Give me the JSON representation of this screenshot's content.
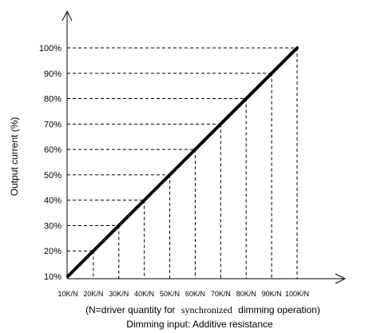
{
  "chart_data": {
    "type": "line",
    "x_categories": [
      "10K/N",
      "20K/N",
      "30K/N",
      "40K/N",
      "50K/N",
      "60K/N",
      "70K/N",
      "80K/N",
      "90K/N",
      "100K/N"
    ],
    "x_values": [
      10,
      20,
      30,
      40,
      50,
      60,
      70,
      80,
      90,
      100
    ],
    "y_ticks": [
      "10%",
      "20%",
      "30%",
      "40%",
      "50%",
      "60%",
      "70%",
      "80%",
      "90%",
      "100%"
    ],
    "y_values": [
      10,
      20,
      30,
      40,
      50,
      60,
      70,
      80,
      90,
      100
    ],
    "series": [
      {
        "points": [
          [
            10,
            10
          ],
          [
            20,
            20
          ],
          [
            30,
            30
          ],
          [
            40,
            40
          ],
          [
            50,
            50
          ],
          [
            60,
            60
          ],
          [
            70,
            70
          ],
          [
            80,
            80
          ],
          [
            90,
            90
          ],
          [
            100,
            100
          ]
        ]
      }
    ],
    "xlim": [
      10,
      100
    ],
    "ylim": [
      10,
      100
    ],
    "ylabel": "Output current (%)",
    "xlabel": "Dimming input: Additive resistance",
    "note": {
      "prefix": "(N=driver quantity for",
      "middle": "synchronized",
      "suffix": "dimming operation)"
    },
    "grid": "dashed guide lines from each point to both axes",
    "line_color": "#000000",
    "guide_color": "#000000"
  }
}
